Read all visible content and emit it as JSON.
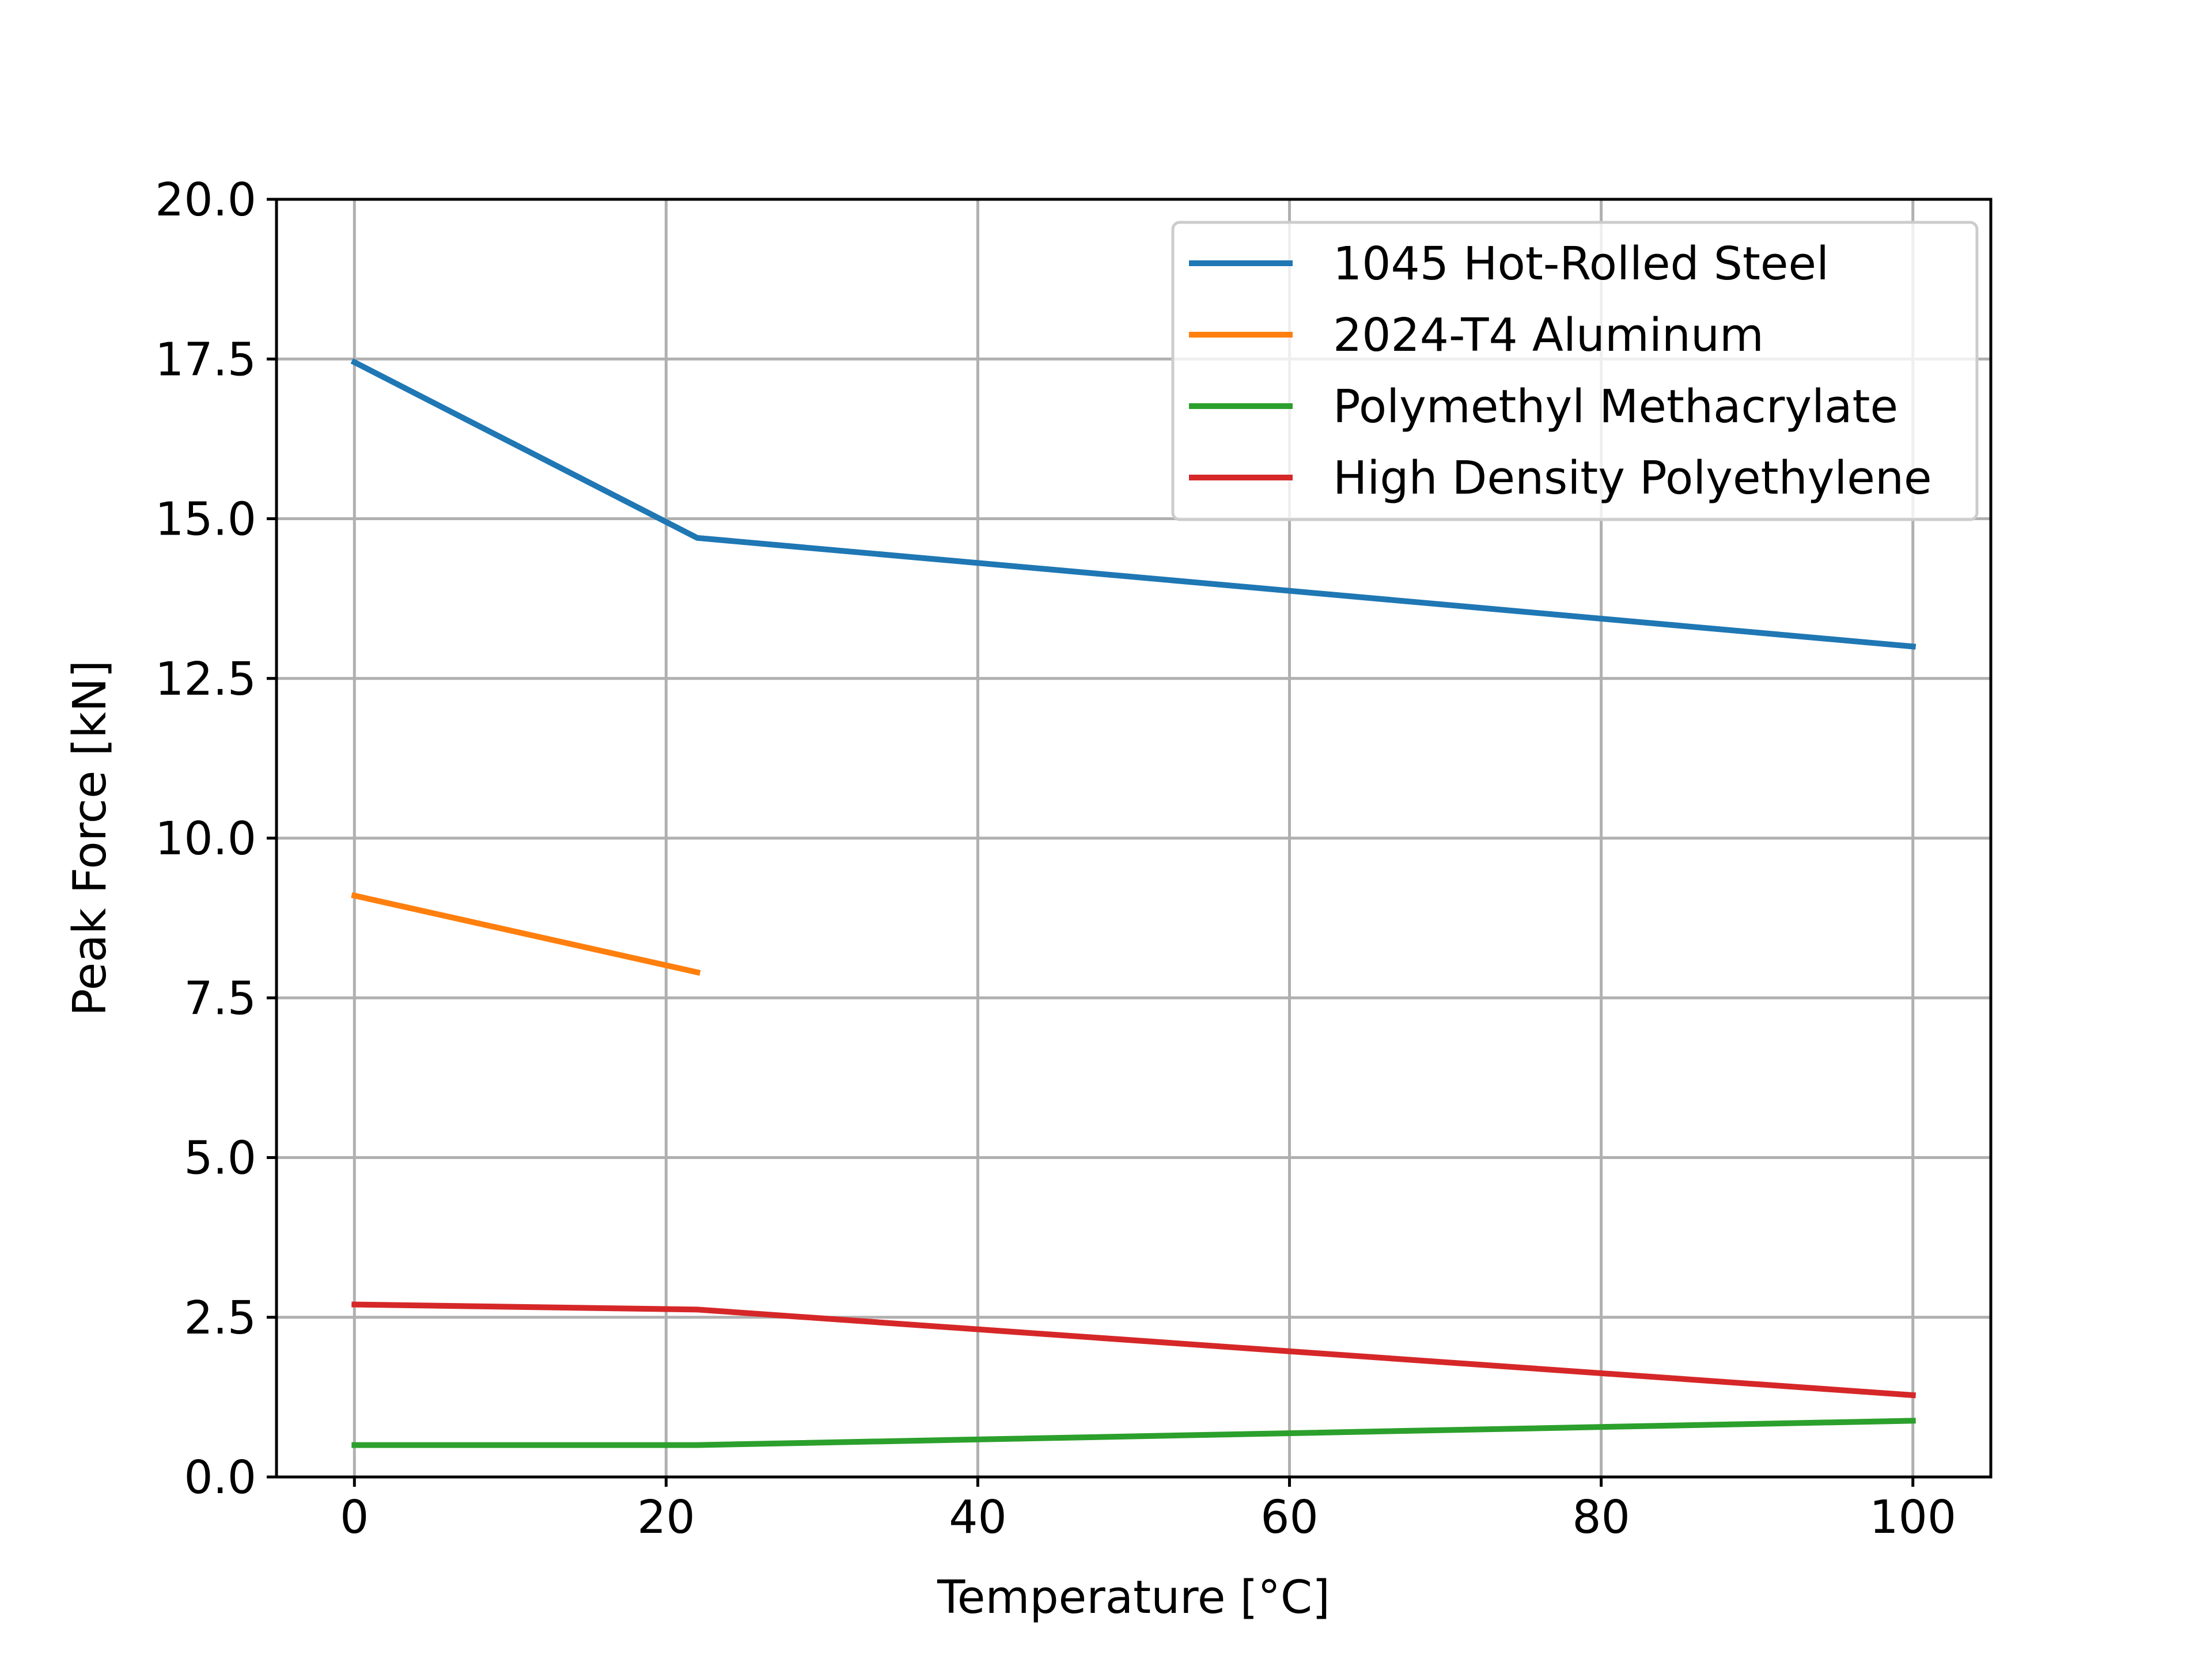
{
  "chart_data": {
    "type": "line",
    "xlabel": "Temperature [°C]",
    "ylabel": "Peak Force [kN]",
    "xlim": [
      -5,
      105
    ],
    "ylim": [
      0,
      20
    ],
    "xticks": [
      0,
      20,
      40,
      60,
      80,
      100
    ],
    "xtick_labels": [
      "0",
      "20",
      "40",
      "60",
      "80",
      "100"
    ],
    "yticks": [
      0,
      2.5,
      5,
      7.5,
      10,
      12.5,
      15,
      17.5,
      20
    ],
    "ytick_labels": [
      "0.0",
      "2.5",
      "5.0",
      "7.5",
      "10.0",
      "12.5",
      "15.0",
      "17.5",
      "20.0"
    ],
    "grid": true,
    "legend_position": "upper right",
    "series": [
      {
        "name": "1045 Hot-Rolled Steel",
        "color": "#1f77b4",
        "x": [
          0,
          22,
          100
        ],
        "y": [
          17.45,
          14.7,
          13.0
        ]
      },
      {
        "name": "2024-T4 Aluminum",
        "color": "#ff7f0e",
        "x": [
          0,
          22
        ],
        "y": [
          9.1,
          7.9
        ]
      },
      {
        "name": "Polymethyl Methacrylate",
        "color": "#2ca02c",
        "x": [
          0,
          22,
          100
        ],
        "y": [
          0.5,
          0.5,
          0.88
        ]
      },
      {
        "name": "High Density Polyethylene",
        "color": "#d62728",
        "x": [
          0,
          22,
          100
        ],
        "y": [
          2.7,
          2.62,
          1.28
        ]
      }
    ]
  }
}
